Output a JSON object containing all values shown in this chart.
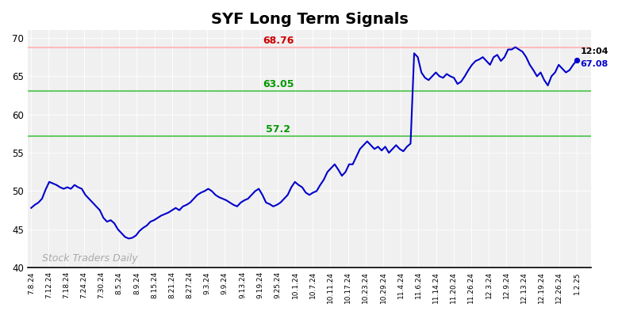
{
  "title": "SYF Long Term Signals",
  "title_fontsize": 14,
  "title_fontweight": "bold",
  "bg_color": "#ffffff",
  "plot_bg_color": "#f0f0f0",
  "line_color": "#0000cc",
  "line_width": 1.5,
  "hline_red": 68.76,
  "hline_green1": 63.05,
  "hline_green2": 57.2,
  "hline_red_color": "#ffbbbb",
  "hline_red_linewidth": 1.5,
  "hline_green_color": "#66cc66",
  "hline_green_linewidth": 1.5,
  "label_red_color": "#cc0000",
  "label_green_color": "#009900",
  "label_fontsize": 9,
  "label_fontweight": "bold",
  "watermark_text": "Stock Traders Daily",
  "watermark_color": "#aaaaaa",
  "watermark_fontsize": 9,
  "last_price": 67.08,
  "last_time": "12:04",
  "last_dot_color": "#0000cc",
  "annotation_fontsize": 8,
  "ylim": [
    40,
    71
  ],
  "yticks": [
    40,
    45,
    50,
    55,
    60,
    65,
    70
  ],
  "xtick_labels": [
    "7.8.24",
    "7.12.24",
    "7.18.24",
    "7.24.24",
    "7.30.24",
    "8.5.24",
    "8.9.24",
    "8.15.24",
    "8.21.24",
    "8.27.24",
    "9.3.24",
    "9.9.24",
    "9.13.24",
    "9.19.24",
    "9.25.24",
    "10.1.24",
    "10.7.24",
    "10.11.24",
    "10.17.24",
    "10.23.24",
    "10.29.24",
    "11.4.24",
    "11.6.24",
    "11.14.24",
    "11.20.24",
    "11.26.24",
    "12.3.24",
    "12.9.24",
    "12.13.24",
    "12.19.24",
    "12.26.24",
    "1.2.25"
  ],
  "prices": [
    47.8,
    48.2,
    48.5,
    49.0,
    50.2,
    51.2,
    51.0,
    50.8,
    50.5,
    50.3,
    50.5,
    50.3,
    50.8,
    50.5,
    50.3,
    49.5,
    49.0,
    48.5,
    48.0,
    47.5,
    46.5,
    46.0,
    46.2,
    45.8,
    45.0,
    44.5,
    44.0,
    43.8,
    43.9,
    44.2,
    44.8,
    45.2,
    45.5,
    46.0,
    46.2,
    46.5,
    46.8,
    47.0,
    47.2,
    47.5,
    47.8,
    47.5,
    48.0,
    48.2,
    48.5,
    49.0,
    49.5,
    49.8,
    50.0,
    50.3,
    50.0,
    49.5,
    49.2,
    49.0,
    48.8,
    48.5,
    48.2,
    48.0,
    48.5,
    48.8,
    49.0,
    49.5,
    50.0,
    50.3,
    49.5,
    48.5,
    48.3,
    48.0,
    48.2,
    48.5,
    49.0,
    49.5,
    50.5,
    51.2,
    50.8,
    50.5,
    49.8,
    49.5,
    49.8,
    50.0,
    50.8,
    51.5,
    52.5,
    53.0,
    53.5,
    52.8,
    52.0,
    52.5,
    53.5,
    53.5,
    54.5,
    55.5,
    56.0,
    56.5,
    56.0,
    55.5,
    55.8,
    55.3,
    55.8,
    55.0,
    55.5,
    56.0,
    55.5,
    55.2,
    55.8,
    56.2,
    68.0,
    67.5,
    65.5,
    64.8,
    64.5,
    65.0,
    65.5,
    65.0,
    64.8,
    65.3,
    65.0,
    64.8,
    64.0,
    64.3,
    65.0,
    65.8,
    66.5,
    67.0,
    67.2,
    67.5,
    67.0,
    66.5,
    67.5,
    67.8,
    67.0,
    67.5,
    68.5,
    68.5,
    68.8,
    68.5,
    68.2,
    67.5,
    66.5,
    65.8,
    65.0,
    65.5,
    64.5,
    63.8,
    65.0,
    65.5,
    66.5,
    66.0,
    65.5,
    65.8,
    66.5,
    67.08
  ]
}
